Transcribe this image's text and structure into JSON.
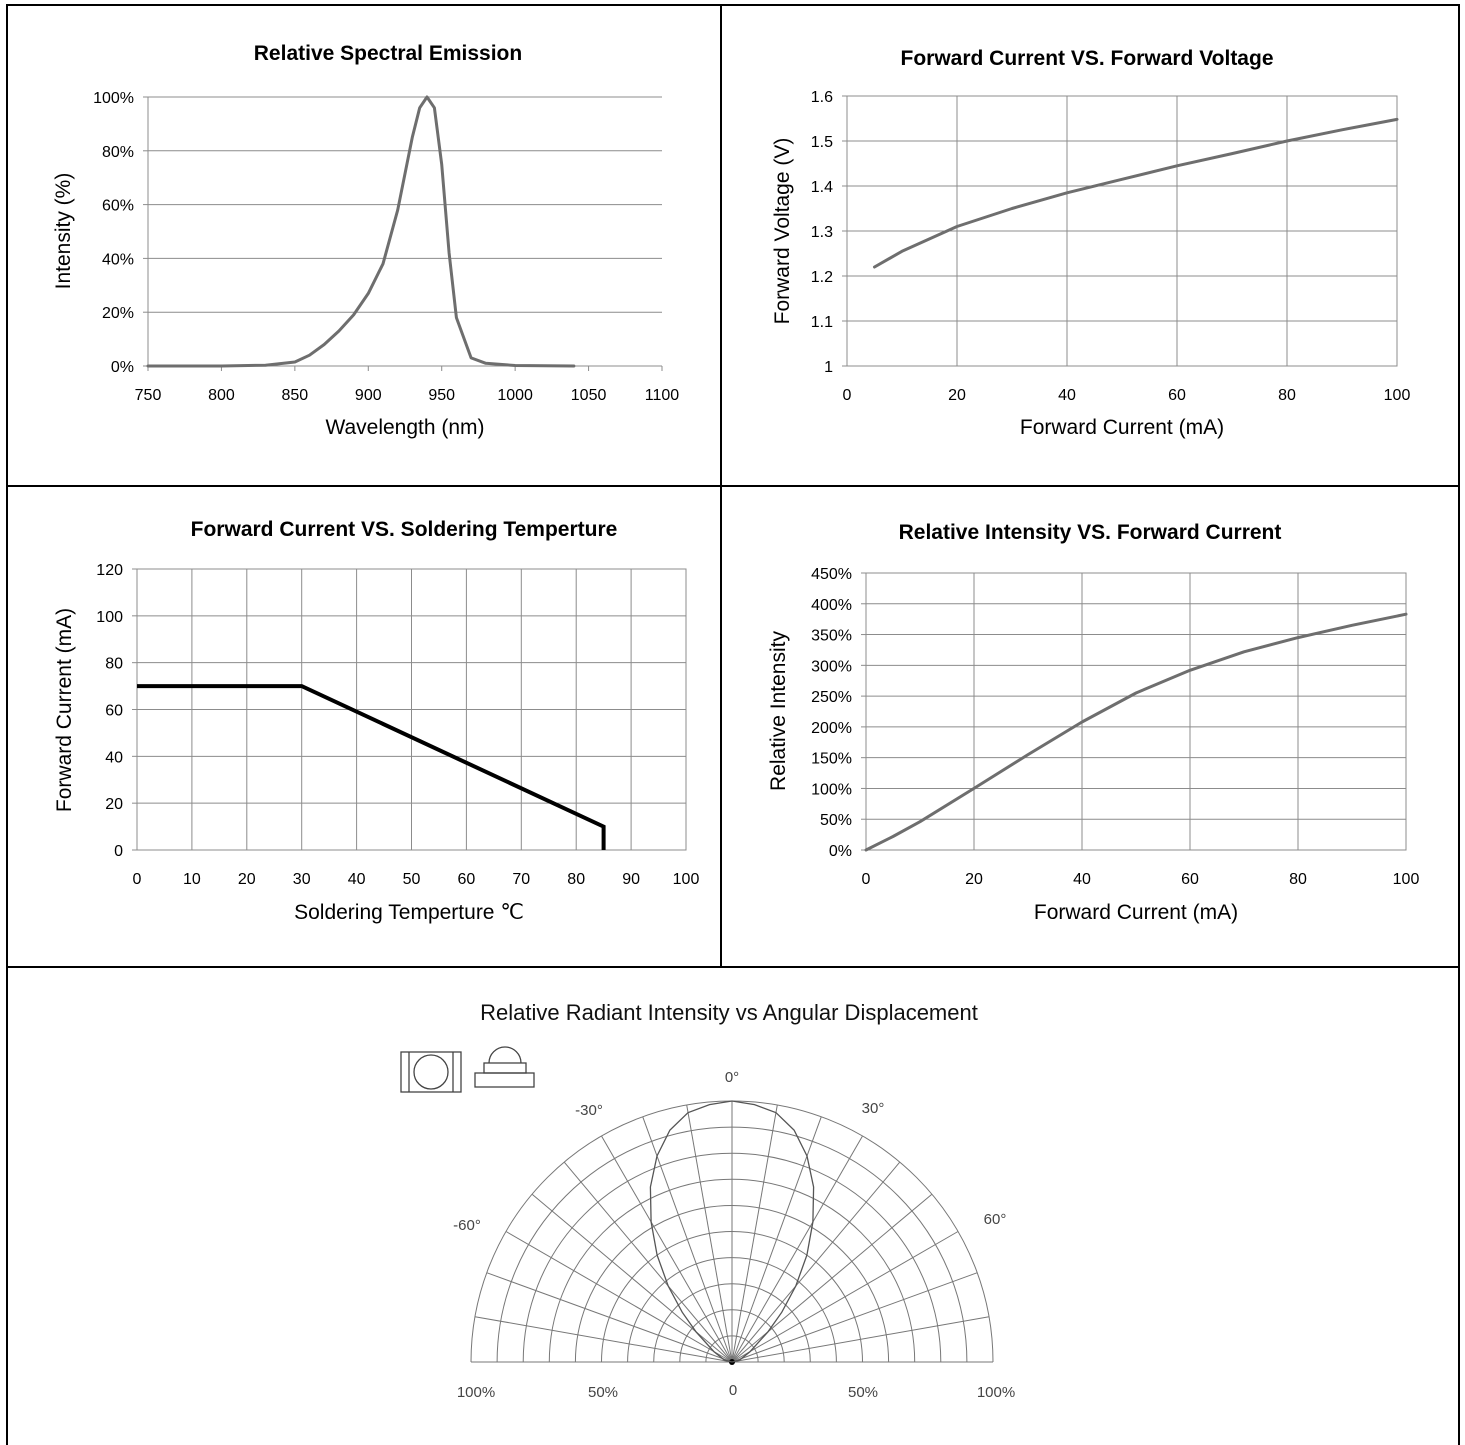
{
  "chart_data": [
    {
      "id": "spectral",
      "type": "line",
      "title": "Relative Spectral Emission",
      "xlabel": "Wavelength (nm)",
      "ylabel": "Intensity (%)",
      "xlim": [
        750,
        1100
      ],
      "ylim": [
        0,
        100
      ],
      "x_ticks": [
        "750",
        "800",
        "850",
        "900",
        "950",
        "1000",
        "1050",
        "1100"
      ],
      "y_ticks": [
        "0%",
        "20%",
        "40%",
        "60%",
        "80%",
        "100%"
      ],
      "grid": "horizontal",
      "series": [
        {
          "x": [
            750,
            800,
            830,
            850,
            860,
            870,
            880,
            890,
            900,
            910,
            920,
            930,
            935,
            940,
            945,
            950,
            955,
            960,
            970,
            980,
            1000,
            1040
          ],
          "y": [
            0,
            0,
            0.3,
            1.5,
            4,
            8,
            13,
            19,
            27,
            38,
            58,
            85,
            96,
            100,
            96,
            75,
            42,
            18,
            3,
            1,
            0.2,
            0
          ]
        }
      ]
    },
    {
      "id": "vf-if",
      "type": "line",
      "title": "Forward Current VS. Forward Voltage",
      "xlabel": "Forward Current (mA)",
      "ylabel": "Forward Voltage  (V)",
      "xlim": [
        0,
        100
      ],
      "ylim": [
        1,
        1.6
      ],
      "x_ticks": [
        "0",
        "20",
        "40",
        "60",
        "80",
        "100"
      ],
      "y_ticks": [
        "1",
        "1.1",
        "1.2",
        "1.3",
        "1.4",
        "1.5",
        "1.6"
      ],
      "grid": "both",
      "series": [
        {
          "x": [
            5,
            10,
            20,
            30,
            40,
            50,
            60,
            70,
            80,
            90,
            100
          ],
          "y": [
            1.22,
            1.255,
            1.31,
            1.35,
            1.385,
            1.415,
            1.445,
            1.472,
            1.5,
            1.525,
            1.548
          ]
        }
      ]
    },
    {
      "id": "derating",
      "type": "line",
      "title": "Forward Current  VS. Soldering Temperture",
      "xlabel": "Soldering Temperture ℃",
      "ylabel": "Forward Current (mA)",
      "xlim": [
        0,
        100
      ],
      "ylim": [
        0,
        120
      ],
      "x_ticks": [
        "0",
        "10",
        "20",
        "30",
        "40",
        "50",
        "60",
        "70",
        "80",
        "90",
        "100"
      ],
      "y_ticks": [
        "0",
        "20",
        "40",
        "60",
        "80",
        "100",
        "120"
      ],
      "grid": "both",
      "series": [
        {
          "x": [
            0,
            30,
            85,
            85
          ],
          "y": [
            70,
            70,
            10,
            0
          ]
        }
      ]
    },
    {
      "id": "ie-if",
      "type": "line",
      "title": "Relative Intensity VS. Forward Current",
      "xlabel": "Forward Current (mA)",
      "ylabel": "Relative Intensity",
      "xlim": [
        0,
        100
      ],
      "ylim": [
        0,
        450
      ],
      "x_ticks": [
        "0",
        "20",
        "40",
        "60",
        "80",
        "100"
      ],
      "y_ticks": [
        "0%",
        "50%",
        "100%",
        "150%",
        "200%",
        "250%",
        "300%",
        "350%",
        "400%",
        "450%"
      ],
      "grid": "both",
      "series": [
        {
          "x": [
            0,
            5,
            10,
            20,
            30,
            40,
            50,
            60,
            70,
            80,
            90,
            100
          ],
          "y": [
            0,
            22,
            46,
            100,
            155,
            208,
            255,
            292,
            322,
            345,
            365,
            383
          ]
        }
      ]
    },
    {
      "id": "polar",
      "type": "polar",
      "title": "Relative Radiant Intensity vs Angular Displacement",
      "angle_labels": [
        "0°",
        "-30°",
        "30°",
        "-60°",
        "60°"
      ],
      "radius_labels": [
        "100%",
        "50%",
        "0",
        "50%",
        "100%"
      ],
      "radial_rings_percent": [
        10,
        20,
        30,
        40,
        50,
        60,
        70,
        80,
        90,
        100
      ],
      "radial_spokes_deg": [
        -90,
        -80,
        -70,
        -60,
        -50,
        -40,
        -30,
        -20,
        -10,
        0,
        10,
        20,
        30,
        40,
        50,
        60,
        70,
        80,
        90
      ],
      "series": [
        {
          "angle_deg": [
            -90,
            -75,
            -60,
            -50,
            -45,
            -40,
            -35,
            -30,
            -25,
            -20,
            -15,
            -10,
            -5,
            0,
            5,
            10,
            15,
            20,
            25,
            30,
            35,
            40,
            45,
            50,
            60,
            75,
            90
          ],
          "intensity_percent": [
            0,
            3,
            8,
            18,
            27,
            38,
            50,
            62,
            74,
            84,
            92,
            97,
            99,
            100,
            99,
            97,
            92,
            84,
            74,
            62,
            50,
            38,
            27,
            18,
            8,
            3,
            0
          ]
        }
      ]
    }
  ]
}
